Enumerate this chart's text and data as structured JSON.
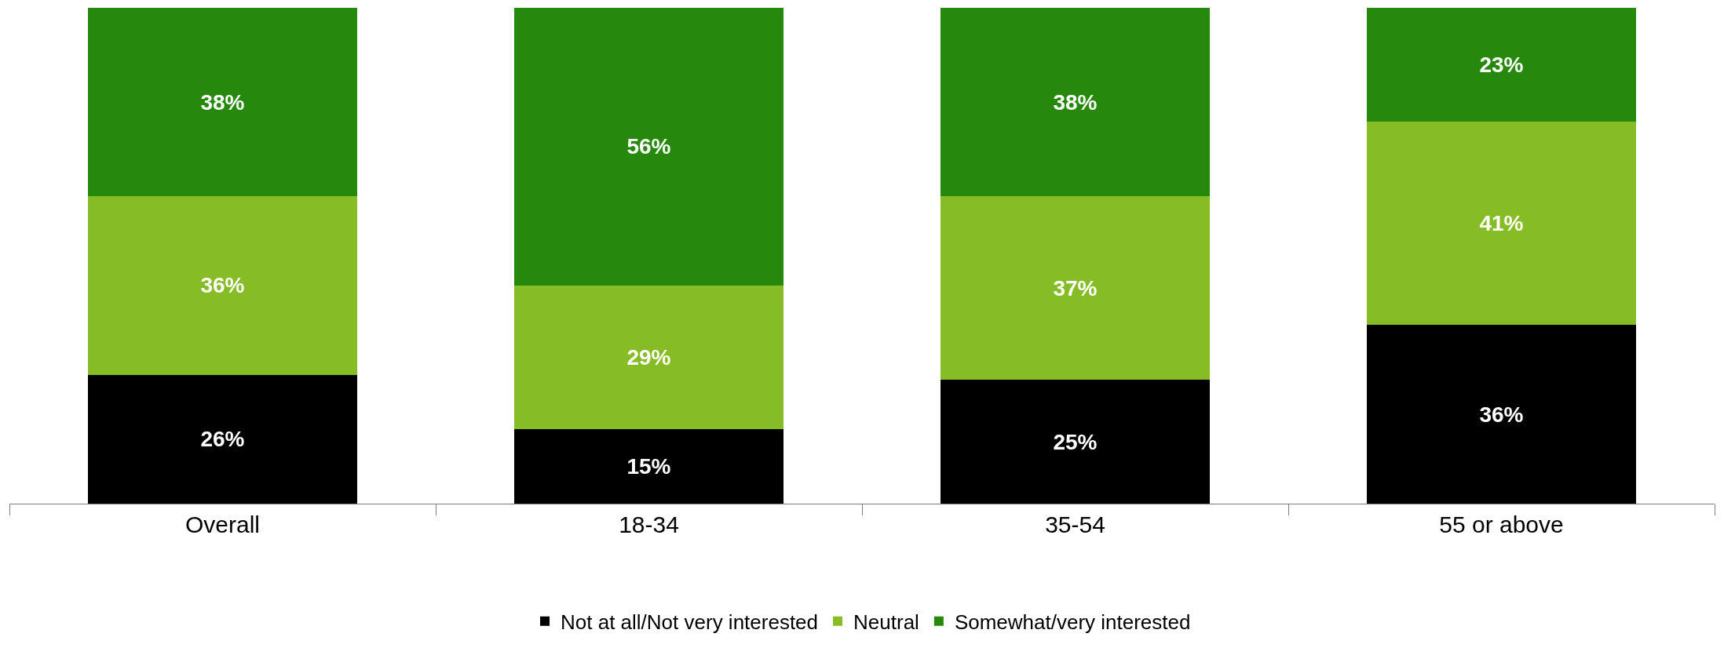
{
  "chart_data": {
    "type": "bar",
    "stacked": true,
    "categories": [
      "Overall",
      "18-34",
      "35-54",
      "55 or above"
    ],
    "series": [
      {
        "name": "Not at all/Not very interested",
        "color": "#000000",
        "values": [
          26,
          15,
          25,
          36
        ],
        "value_labels": [
          "26%",
          "15%",
          "25%",
          "36%"
        ]
      },
      {
        "name": "Neutral",
        "color": "#86bc25",
        "values": [
          36,
          29,
          37,
          41
        ],
        "value_labels": [
          "36%",
          "29%",
          "37%",
          "41%"
        ]
      },
      {
        "name": "Somewhat/very interested",
        "color": "#26890d",
        "values": [
          38,
          56,
          38,
          23
        ],
        "value_labels": [
          "38%",
          "56%",
          "38%",
          "23%"
        ]
      }
    ],
    "ylim": [
      0,
      100
    ],
    "tick_labels": "x",
    "grid": false,
    "legend": "bottom"
  }
}
